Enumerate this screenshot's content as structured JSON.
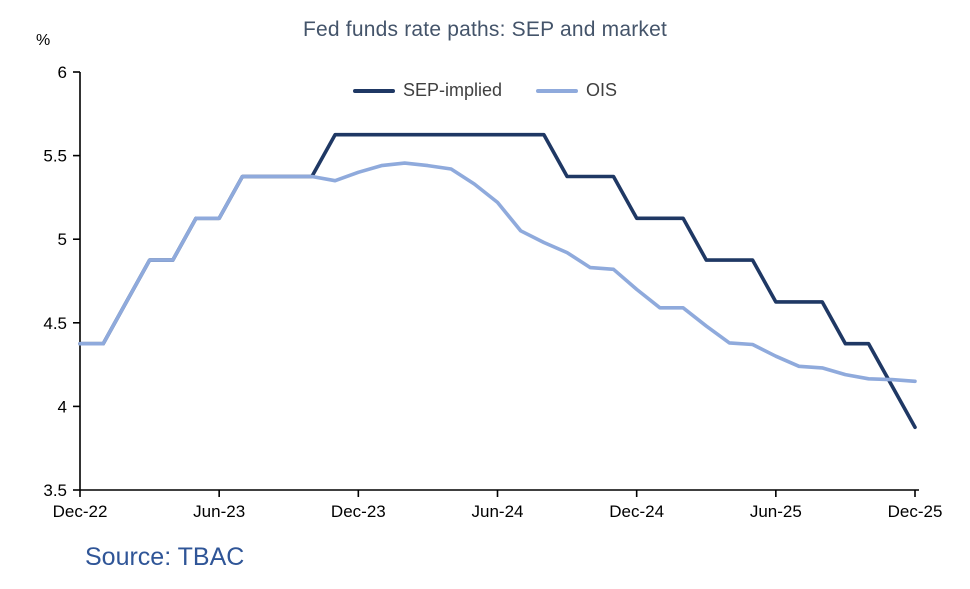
{
  "chart_data": {
    "type": "line",
    "title": "Fed funds rate paths: SEP and market",
    "y_unit": "%",
    "source": "Source: TBAC",
    "xlim": [
      0,
      36
    ],
    "ylim": [
      3.5,
      6
    ],
    "y_ticks": [
      3.5,
      4,
      4.5,
      5,
      5.5,
      6
    ],
    "x_tick_months": [
      0,
      6,
      12,
      18,
      24,
      30,
      36
    ],
    "x_tick_labels": [
      "Dec-22",
      "Jun-23",
      "Dec-23",
      "Jun-24",
      "Dec-24",
      "Jun-25",
      "Dec-25"
    ],
    "legend_position": "top-center",
    "grid": false,
    "axis_color": "#000000",
    "series": [
      {
        "name": "SEP-implied",
        "color": "#1f3864",
        "values": [
          4.375,
          4.375,
          4.625,
          4.875,
          4.875,
          5.125,
          5.125,
          5.375,
          5.375,
          5.375,
          5.375,
          5.625,
          5.625,
          5.625,
          5.625,
          5.625,
          5.625,
          5.625,
          5.625,
          5.625,
          5.625,
          5.375,
          5.375,
          5.375,
          5.125,
          5.125,
          5.125,
          4.875,
          4.875,
          4.875,
          4.625,
          4.625,
          4.625,
          4.375,
          4.375,
          4.125,
          3.875
        ]
      },
      {
        "name": "OIS",
        "color": "#8faadc",
        "values": [
          4.375,
          4.375,
          4.625,
          4.875,
          4.875,
          5.125,
          5.125,
          5.375,
          5.375,
          5.375,
          5.375,
          5.35,
          5.4,
          5.44,
          5.455,
          5.44,
          5.42,
          5.33,
          5.22,
          5.05,
          4.98,
          4.92,
          4.83,
          4.82,
          4.7,
          4.59,
          4.59,
          4.48,
          4.38,
          4.37,
          4.3,
          4.24,
          4.23,
          4.19,
          4.165,
          4.16,
          4.15
        ]
      }
    ]
  }
}
